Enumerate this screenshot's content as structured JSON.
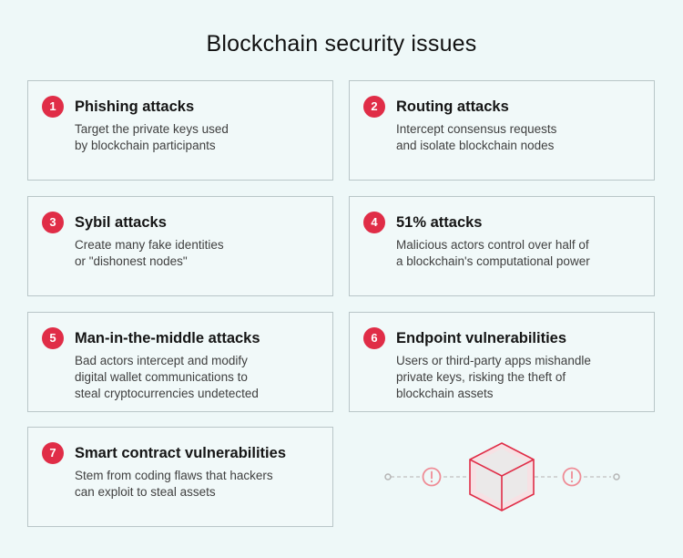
{
  "title": "Blockchain security issues",
  "accent_color": "#e02d47",
  "cards": [
    {
      "number": "1",
      "title": "Phishing attacks",
      "lines": [
        "Target the private keys used",
        "by blockchain participants"
      ]
    },
    {
      "number": "2",
      "title": "Routing attacks",
      "lines": [
        "Intercept consensus requests",
        "and isolate blockchain nodes"
      ]
    },
    {
      "number": "3",
      "title": "Sybil attacks",
      "lines": [
        "Create many fake identities",
        "or \"dishonest nodes\""
      ]
    },
    {
      "number": "4",
      "title": "51% attacks",
      "lines": [
        "Malicious actors control over half of",
        "a blockchain's computational power"
      ]
    },
    {
      "number": "5",
      "title": "Man-in-the-middle attacks",
      "lines": [
        "Bad actors intercept and modify",
        "digital wallet communications to",
        "steal cryptocurrencies undetected"
      ]
    },
    {
      "number": "6",
      "title": "Endpoint vulnerabilities",
      "lines": [
        "Users or third-party apps mishandle",
        "private keys, risking the theft of",
        "blockchain assets"
      ]
    },
    {
      "number": "7",
      "title": "Smart contract vulnerabilities",
      "lines": [
        "Stem from coding flaws that hackers",
        "can exploit to steal assets"
      ]
    }
  ],
  "illustration": {
    "icons": [
      "cube-icon",
      "warning-circle-icon",
      "warning-circle-icon",
      "node-dot-icon",
      "node-dot-icon"
    ]
  }
}
